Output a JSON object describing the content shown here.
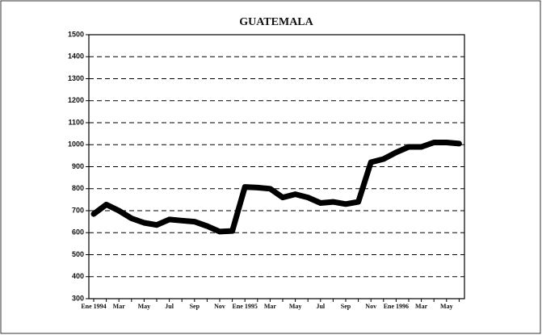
{
  "chart_data": {
    "type": "line",
    "title": "GUATEMALA",
    "categories": [
      "Ene 1994",
      null,
      "Mar",
      null,
      "May",
      null,
      "Jul",
      null,
      "Sep",
      null,
      "Nov",
      null,
      "Ene 1995",
      null,
      "Mar",
      null,
      "May",
      null,
      "Jul",
      null,
      "Sep",
      null,
      "Nov",
      null,
      "Ene 1996",
      null,
      "Mar",
      null,
      "May",
      null
    ],
    "series": [
      {
        "name": "Guatemala",
        "color": "#000000",
        "values": [
          685,
          728,
          700,
          665,
          645,
          635,
          660,
          655,
          650,
          630,
          605,
          608,
          808,
          805,
          800,
          760,
          775,
          760,
          735,
          740,
          730,
          740,
          920,
          935,
          965,
          990,
          990,
          1010,
          1010,
          1005
        ]
      }
    ],
    "ylim": [
      300,
      1500
    ],
    "yticks": [
      300,
      400,
      500,
      600,
      700,
      800,
      900,
      1000,
      1100,
      1200,
      1300,
      1400,
      1500
    ],
    "grid": true
  }
}
